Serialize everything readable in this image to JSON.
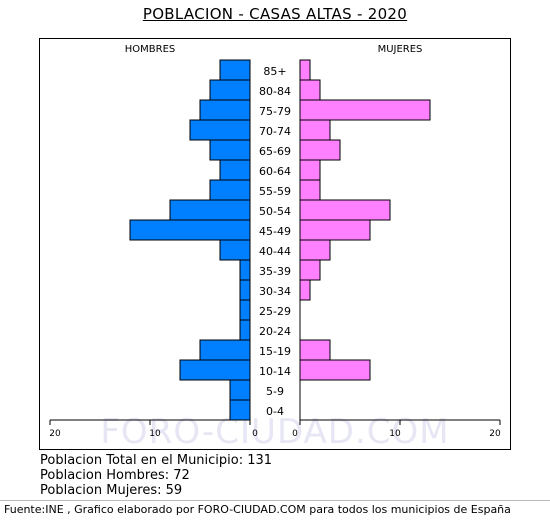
{
  "chart_data": {
    "type": "bar",
    "title": "POBLACION - CASAS ALTAS - 2020",
    "categories": [
      "85+",
      "80-84",
      "75-79",
      "70-74",
      "65-69",
      "60-64",
      "55-59",
      "50-54",
      "45-49",
      "40-44",
      "35-39",
      "30-34",
      "25-29",
      "20-24",
      "15-19",
      "10-14",
      "5-9",
      "0-4"
    ],
    "series": [
      {
        "name": "HOMBRES",
        "values": [
          3,
          4,
          5,
          6,
          4,
          3,
          4,
          8,
          12,
          3,
          1,
          1,
          1,
          1,
          5,
          7,
          2,
          2
        ]
      },
      {
        "name": "MUJERES",
        "values": [
          1,
          2,
          13,
          3,
          4,
          2,
          2,
          9,
          7,
          3,
          2,
          1,
          0,
          0,
          3,
          7,
          0,
          0
        ]
      }
    ],
    "left_ticks": [
      "20",
      "10",
      "0"
    ],
    "right_ticks": [
      "0",
      "10",
      "20"
    ],
    "xlim": [
      0,
      20
    ],
    "colors": {
      "hombres": "#0080ff",
      "mujeres": "#ff80ff"
    }
  },
  "watermark": "FORO-CIUDAD.COM",
  "stats": {
    "total": "Poblacion Total en el Municipio: 131",
    "hombres": "Poblacion Hombres: 72",
    "mujeres": "Poblacion Mujeres: 59"
  },
  "footer": "Fuente:INE , Grafico elaborado por FORO-CIUDAD.COM para todos los municipios de España"
}
